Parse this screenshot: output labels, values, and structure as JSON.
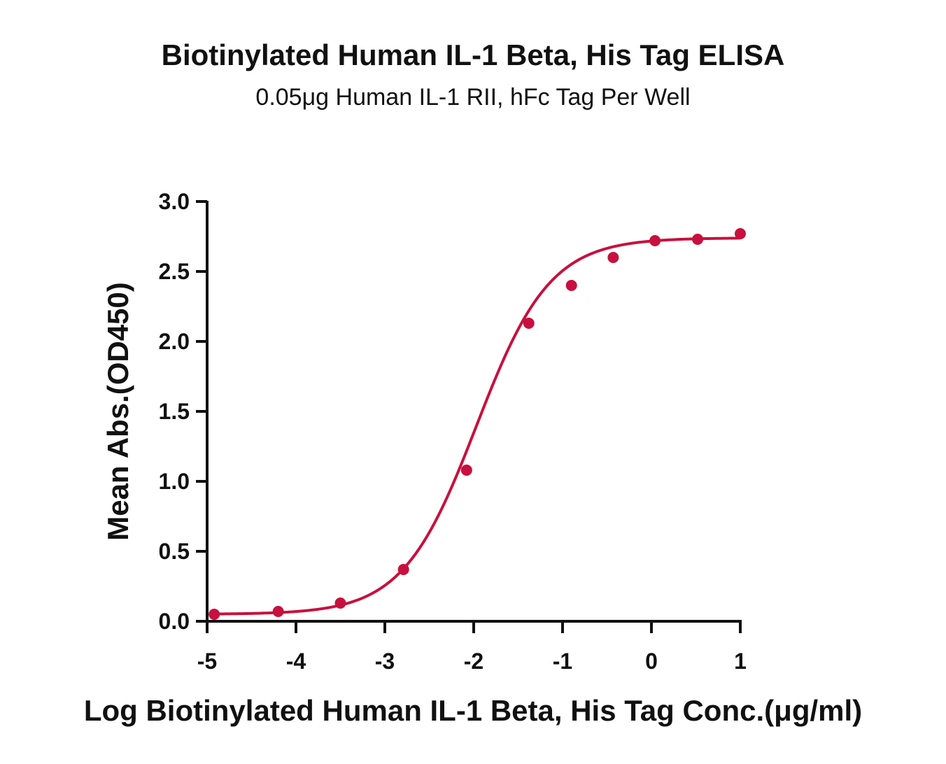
{
  "chart_data": {
    "type": "scatter",
    "title": "Biotinylated Human IL-1 Beta, His Tag ELISA",
    "subtitle": "0.05μg Human IL-1 RII, hFc Tag Per Well",
    "xlabel": "Log Biotinylated Human IL-1 Beta, His Tag Conc.(μg/ml)",
    "ylabel": "Mean Abs.(OD450)",
    "xlim": [
      -5,
      1
    ],
    "ylim": [
      0,
      3
    ],
    "xticks": [
      "-5",
      "-4",
      "-3",
      "-2",
      "-1",
      "0",
      "1"
    ],
    "yticks": [
      "0.0",
      "0.5",
      "1.0",
      "1.5",
      "2.0",
      "2.5",
      "3.0"
    ],
    "grid": false,
    "series_color": "#c8103e",
    "series": [
      {
        "x": [
          -4.92,
          -4.2,
          -3.5,
          -2.79,
          -2.08,
          -1.38,
          -0.9,
          -0.43,
          0.04,
          0.52,
          1.0
        ],
        "y": [
          0.05,
          0.07,
          0.13,
          0.37,
          1.08,
          2.13,
          2.4,
          2.6,
          2.72,
          2.73,
          2.77
        ]
      }
    ],
    "fit_curve": {
      "model": "4PL",
      "bottom": 0.05,
      "top": 2.74,
      "logEC50": -1.97,
      "hill_slope": 1.05
    }
  }
}
